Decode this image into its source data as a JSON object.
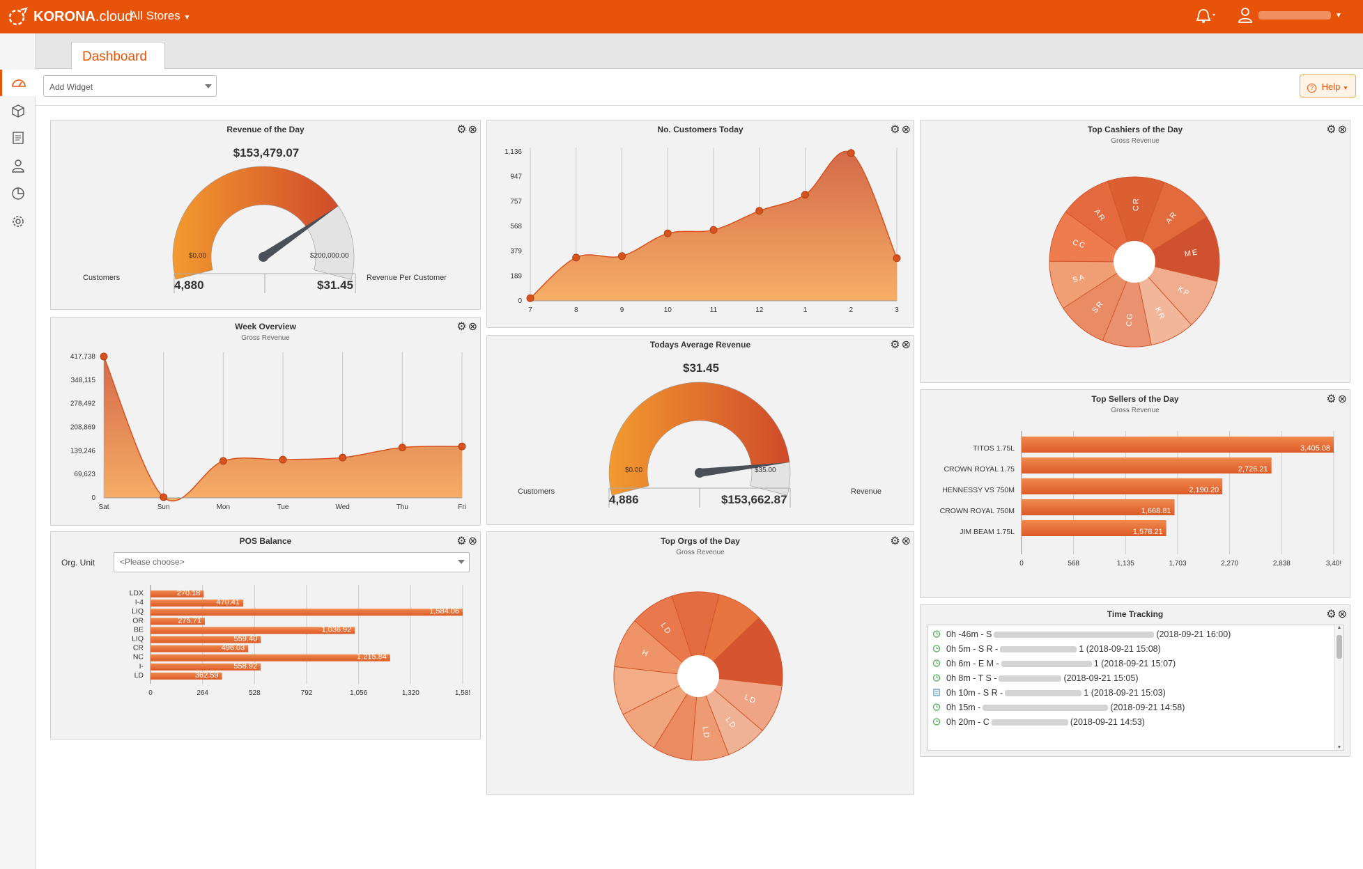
{
  "topbar": {
    "brand_bold": "KORONA",
    "brand_light": ".cloud",
    "store_selector": "All Stores",
    "bell_icon": "bell-icon",
    "user_icon": "user-icon",
    "accent": "#e8530a"
  },
  "sidebar": {
    "items": [
      {
        "icon": "dashboard-icon"
      },
      {
        "icon": "box-icon"
      },
      {
        "icon": "receipt-icon"
      },
      {
        "icon": "person-icon"
      },
      {
        "icon": "pie-chart-icon"
      },
      {
        "icon": "gear-icon"
      }
    ]
  },
  "tabs": {
    "dashboard": "Dashboard"
  },
  "toolbar": {
    "add_widget": "Add Widget",
    "help": "Help"
  },
  "widgets": {
    "revenue_day": {
      "title": "Revenue of the Day",
      "value": "$153,479.07",
      "min": "$0.00",
      "max": "$200,000.00",
      "customers_label": "Customers",
      "customers_value": "4,880",
      "rpc_value": "$31.45",
      "rpc_label": "Revenue Per Customer",
      "gauge_fraction": 0.767
    },
    "customers_today": {
      "title": "No. Customers Today"
    },
    "top_cashiers": {
      "title": "Top Cashiers of the Day",
      "subtitle": "Gross Revenue"
    },
    "week_overview": {
      "title": "Week Overview",
      "subtitle": "Gross Revenue"
    },
    "avg_revenue": {
      "title": "Todays Average Revenue",
      "value": "$31.45",
      "min": "$0.00",
      "max": "$35.00",
      "customers_label": "Customers",
      "customers_value": "4,886",
      "revenue_value": "$153,662.87",
      "revenue_label": "Revenue",
      "gauge_fraction": 0.899
    },
    "top_sellers": {
      "title": "Top Sellers of the Day",
      "subtitle": "Gross Revenue"
    },
    "pos_balance": {
      "title": "POS Balance",
      "org_unit_label": "Org. Unit",
      "org_unit_placeholder": "<Please choose>"
    },
    "top_orgs": {
      "title": "Top Orgs of the Day",
      "subtitle": "Gross Revenue"
    },
    "time_tracking": {
      "title": "Time Tracking",
      "entries": [
        {
          "prefix": "0h -46m - S",
          "suffix": "(2018-09-21 16:00)",
          "icon": "clock-icon"
        },
        {
          "prefix": "0h 5m - S R -",
          "suffix": "1 (2018-09-21 15:08)",
          "icon": "clock-icon"
        },
        {
          "prefix": "0h 6m - E M -",
          "suffix": "1 (2018-09-21 15:07)",
          "icon": "clock-icon"
        },
        {
          "prefix": "0h 8m - T S -",
          "suffix": "(2018-09-21 15:05)",
          "icon": "clock-icon"
        },
        {
          "prefix": "0h 10m - S R -",
          "suffix": "1 (2018-09-21 15:03)",
          "icon": "building-icon"
        },
        {
          "prefix": "0h 15m -",
          "suffix": "(2018-09-21 14:58)",
          "icon": "clock-icon"
        },
        {
          "prefix": "0h 20m - C",
          "suffix": "(2018-09-21 14:53)",
          "icon": "clock-icon"
        }
      ]
    }
  },
  "chart_data": [
    {
      "id": "customers",
      "type": "area",
      "x": [
        "7",
        "8",
        "9",
        "10",
        "11",
        "12",
        "1",
        "2",
        "3"
      ],
      "values": [
        20,
        330,
        341,
        514,
        540,
        686,
        809,
        1127,
        325
      ],
      "ytick_labels": [
        "0",
        "189",
        "379",
        "568",
        "757",
        "947",
        "1,136"
      ],
      "ylim": [
        0,
        1136
      ]
    },
    {
      "id": "week",
      "type": "area",
      "x": [
        "Sat",
        "Sun",
        "Mon",
        "Tue",
        "Wed",
        "Thu",
        "Fri"
      ],
      "values": [
        417738,
        2000,
        109000,
        113000,
        119000,
        149000,
        152000
      ],
      "ytick_labels": [
        "0",
        "69,623",
        "139,246",
        "208,869",
        "278,492",
        "348,115",
        "417,738"
      ],
      "ylim": [
        0,
        417738
      ]
    },
    {
      "id": "cashiers",
      "type": "pie",
      "labels": [
        "CR",
        "AR",
        "ME",
        "KP",
        "KR",
        "CG",
        "SR",
        "SA",
        "CC",
        "AR"
      ],
      "values": [
        10.8,
        10.5,
        12.5,
        9.6,
        8.5,
        9.3,
        9.7,
        9.3,
        9.9,
        9.9
      ],
      "colors": [
        "#dc5f34",
        "#e26a3c",
        "#cf5130",
        "#f0ad8e",
        "#f2b79a",
        "#ea916f",
        "#e98c66",
        "#f09e73",
        "#ee7c4e",
        "#e56a3f"
      ]
    },
    {
      "id": "sellers",
      "type": "bar",
      "categories": [
        "TITOS 1.75L",
        "CROWN ROYAL 1.75",
        "HENNESSY VS 750M",
        "CROWN ROYAL 750M",
        "JIM BEAM 1.75L"
      ],
      "values": [
        3405.08,
        2726.21,
        2190.2,
        1668.81,
        1578.21
      ],
      "value_labels": [
        "3,405.08",
        "2,726.21",
        "2,190.20",
        "1,668.81",
        "1,578.21"
      ],
      "xtick_labels": [
        "0",
        "568",
        "1,135",
        "1,703",
        "2,270",
        "2,838",
        "3,40!"
      ],
      "xlim": [
        0,
        3405
      ]
    },
    {
      "id": "pos",
      "type": "bar",
      "categories": [
        "LDX",
        "I-4",
        "LIQ",
        "OR",
        "BE",
        "LIQ",
        "CR",
        "NC",
        "I-",
        "LD"
      ],
      "values": [
        270.18,
        470.41,
        1584.06,
        275.71,
        1036.92,
        559.4,
        496.03,
        1215.84,
        558.92,
        362.59
      ],
      "value_labels": [
        "270.18",
        "470.41",
        "1,584.06",
        "275.71",
        "1,036.92",
        "559.40",
        "496.03",
        "1,215.84",
        "558.92",
        "362.59"
      ],
      "xtick_labels": [
        "0",
        "264",
        "528",
        "792",
        "1,056",
        "1,320",
        "1,58!"
      ],
      "xlim": [
        0,
        1584
      ]
    },
    {
      "id": "orgs",
      "type": "pie",
      "labels": [
        "",
        "",
        "",
        "LD",
        "LD",
        "LD",
        "",
        "",
        "",
        "H",
        "LD"
      ],
      "values": [
        9.1,
        8.8,
        14.0,
        9.4,
        7.9,
        7.2,
        7.5,
        8.7,
        9.3,
        9.6,
        8.5
      ],
      "colors": [
        "#e36c41",
        "#e8743f",
        "#d65531",
        "#efa585",
        "#f0b295",
        "#ee9a72",
        "#eb8b63",
        "#f0a57c",
        "#f2ad86",
        "#ef9468",
        "#e9794c"
      ]
    }
  ]
}
